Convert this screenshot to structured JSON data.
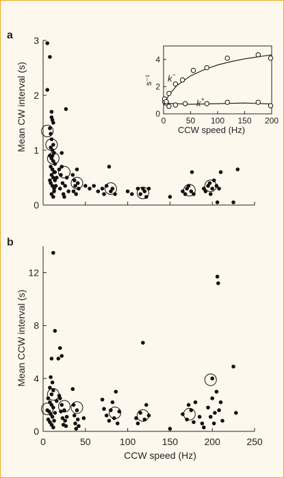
{
  "chart_data": [
    {
      "panel": "a",
      "type": "scatter",
      "xlabel": "",
      "ylabel": "Mean CW interval (s)",
      "xlim": [
        0,
        250
      ],
      "ylim": [
        0,
        3
      ],
      "yticks": [
        "0",
        "1",
        "2",
        "3"
      ],
      "series": [
        {
          "values": [
            [
              5,
              2.95
            ],
            [
              5,
              2.1
            ],
            [
              8,
              2.7
            ],
            [
              10,
              1.6
            ],
            [
              10,
              1.7
            ],
            [
              11,
              1.55
            ],
            [
              12,
              1.5
            ],
            [
              8,
              1.4
            ],
            [
              9,
              1.3
            ],
            [
              10,
              1.2
            ],
            [
              12,
              1.1
            ],
            [
              9,
              1.05
            ],
            [
              11,
              1.0
            ],
            [
              13,
              0.95
            ],
            [
              8,
              0.9
            ],
            [
              10,
              0.85
            ],
            [
              12,
              0.8
            ],
            [
              14,
              0.75
            ],
            [
              9,
              0.7
            ],
            [
              11,
              0.65
            ],
            [
              13,
              0.6
            ],
            [
              10,
              0.55
            ],
            [
              12,
              0.5
            ],
            [
              14,
              0.45
            ],
            [
              9,
              0.4
            ],
            [
              11,
              0.35
            ],
            [
              13,
              0.3
            ],
            [
              10,
              0.2
            ],
            [
              12,
              0.15
            ],
            [
              15,
              0.35
            ],
            [
              8,
              0.45
            ],
            [
              14,
              0.6
            ],
            [
              16,
              0.5
            ],
            [
              13,
              0.25
            ],
            [
              11,
              0.9
            ],
            [
              19,
              0.65
            ],
            [
              20,
              0.3
            ],
            [
              21,
              0.55
            ],
            [
              22,
              0.95
            ],
            [
              22,
              0.7
            ],
            [
              23,
              0.4
            ],
            [
              24,
              0.2
            ],
            [
              25,
              0.15
            ],
            [
              26,
              0.35
            ],
            [
              27,
              1.75
            ],
            [
              28,
              0.5
            ],
            [
              30,
              0.25
            ],
            [
              35,
              0.55
            ],
            [
              36,
              0.25
            ],
            [
              37,
              0.45
            ],
            [
              38,
              0.35
            ],
            [
              39,
              0.2
            ],
            [
              40,
              0.65
            ],
            [
              41,
              0.4
            ],
            [
              42,
              0.3
            ],
            [
              50,
              0.35
            ],
            [
              55,
              0.3
            ],
            [
              60,
              0.35
            ],
            [
              65,
              0.25
            ],
            [
              70,
              0.3
            ],
            [
              72,
              0.2
            ],
            [
              75,
              0.35
            ],
            [
              78,
              0.7
            ],
            [
              80,
              0.25
            ],
            [
              82,
              0.3
            ],
            [
              85,
              0.2
            ],
            [
              100,
              0.25
            ],
            [
              105,
              0.2
            ],
            [
              112,
              0.3
            ],
            [
              115,
              0.2
            ],
            [
              118,
              0.3
            ],
            [
              120,
              0.25
            ],
            [
              122,
              0.15
            ],
            [
              125,
              0.3
            ],
            [
              150,
              0.15
            ],
            [
              165,
              0.25
            ],
            [
              168,
              0.2
            ],
            [
              170,
              0.3
            ],
            [
              172,
              0.35
            ],
            [
              175,
              0.25
            ],
            [
              176,
              0.6
            ],
            [
              178,
              0.2
            ],
            [
              190,
              0.3
            ],
            [
              192,
              0.25
            ],
            [
              195,
              0.35
            ],
            [
              197,
              0.4
            ],
            [
              198,
              0.2
            ],
            [
              200,
              0.3
            ],
            [
              202,
              0.45
            ],
            [
              205,
              0.35
            ],
            [
              206,
              0.05
            ],
            [
              208,
              0.3
            ],
            [
              210,
              0.6
            ],
            [
              225,
              0.05
            ],
            [
              230,
              0.65
            ]
          ]
        },
        {
          "marker": "open-circle-large",
          "values": [
            [
              5,
              1.35
            ],
            [
              10,
              1.1
            ],
            [
              12,
              0.85
            ],
            [
              25,
              0.6
            ],
            [
              40,
              0.4
            ],
            [
              80,
              0.3
            ],
            [
              118,
              0.22
            ],
            [
              173,
              0.27
            ],
            [
              198,
              0.35
            ]
          ]
        }
      ],
      "inset": {
        "type": "line+scatter",
        "xlabel": "CCW speed (Hz)",
        "ylabel": "s⁻¹",
        "xlim": [
          0,
          200
        ],
        "ylim": [
          0,
          5
        ],
        "xticks": [
          "0",
          "50",
          "100",
          "150",
          "200"
        ],
        "yticks": [
          "0",
          "2",
          "4"
        ],
        "annotations": [
          "k",
          "k"
        ],
        "series": [
          {
            "name": "k-",
            "points": [
              [
                2,
                0.9
              ],
              [
                5,
                0.8
              ],
              [
                10,
                1.5
              ],
              [
                22,
                2.2
              ],
              [
                35,
                2.5
              ],
              [
                55,
                3.2
              ],
              [
                80,
                3.4
              ],
              [
                118,
                4.1
              ],
              [
                175,
                4.35
              ],
              [
                198,
                4.1
              ]
            ],
            "fit": [
              [
                0,
                0.6
              ],
              [
                10,
                1.4
              ],
              [
                25,
                2.1
              ],
              [
                50,
                2.8
              ],
              [
                75,
                3.25
              ],
              [
                100,
                3.6
              ],
              [
                125,
                3.85
              ],
              [
                150,
                4.05
              ],
              [
                175,
                4.2
              ],
              [
                200,
                4.35
              ]
            ]
          },
          {
            "name": "k+",
            "points": [
              [
                2,
                1.1
              ],
              [
                5,
                0.9
              ],
              [
                10,
                0.55
              ],
              [
                22,
                0.65
              ],
              [
                40,
                0.75
              ],
              [
                80,
                0.75
              ],
              [
                118,
                0.85
              ],
              [
                175,
                0.85
              ],
              [
                198,
                0.6
              ]
            ],
            "fit": [
              [
                0,
                0.8
              ],
              [
                20,
                0.75
              ],
              [
                50,
                0.7
              ],
              [
                100,
                0.75
              ],
              [
                150,
                0.8
              ],
              [
                200,
                0.72
              ]
            ]
          }
        ]
      }
    },
    {
      "panel": "b",
      "type": "scatter",
      "xlabel": "CCW speed (Hz)",
      "ylabel": "Mean CCW interval (s)",
      "xlim": [
        0,
        250
      ],
      "ylim": [
        0,
        14
      ],
      "xticks": [
        "0",
        "50",
        "100",
        "150",
        "200",
        "250"
      ],
      "yticks": [
        "0",
        "4",
        "8",
        "12"
      ],
      "series": [
        {
          "values": [
            [
              12,
              13.5
            ],
            [
              14,
              7.6
            ],
            [
              20,
              6.3
            ],
            [
              22,
              5.7
            ],
            [
              18,
              5.5
            ],
            [
              10,
              5.5
            ],
            [
              9,
              4.1
            ],
            [
              11,
              3.7
            ],
            [
              8,
              3.3
            ],
            [
              12,
              3.1
            ],
            [
              10,
              2.8
            ],
            [
              6,
              2.5
            ],
            [
              8,
              2.2
            ],
            [
              10,
              2.0
            ],
            [
              12,
              1.8
            ],
            [
              5,
              1.6
            ],
            [
              7,
              1.5
            ],
            [
              9,
              1.3
            ],
            [
              11,
              1.1
            ],
            [
              6,
              0.9
            ],
            [
              8,
              0.7
            ],
            [
              10,
              0.5
            ],
            [
              12,
              0.3
            ],
            [
              14,
              1.4
            ],
            [
              16,
              2.3
            ],
            [
              13,
              0.8
            ],
            [
              19,
              2.7
            ],
            [
              20,
              2.5
            ],
            [
              21,
              1.5
            ],
            [
              22,
              2.0
            ],
            [
              23,
              1.0
            ],
            [
              24,
              0.5
            ],
            [
              25,
              1.6
            ],
            [
              26,
              0.8
            ],
            [
              27,
              0.4
            ],
            [
              28,
              1.1
            ],
            [
              35,
              3.2
            ],
            [
              36,
              2.0
            ],
            [
              37,
              1.2
            ],
            [
              38,
              0.6
            ],
            [
              39,
              0.2
            ],
            [
              40,
              1.6
            ],
            [
              41,
              0.9
            ],
            [
              42,
              0.4
            ],
            [
              48,
              1.0
            ],
            [
              70,
              2.4
            ],
            [
              72,
              1.7
            ],
            [
              75,
              1.2
            ],
            [
              78,
              0.8
            ],
            [
              80,
              1.6
            ],
            [
              82,
              2.2
            ],
            [
              84,
              1.0
            ],
            [
              86,
              3.0
            ],
            [
              88,
              0.6
            ],
            [
              90,
              1.5
            ],
            [
              110,
              1.0
            ],
            [
              112,
              0.6
            ],
            [
              115,
              1.4
            ],
            [
              118,
              6.7
            ],
            [
              120,
              0.9
            ],
            [
              122,
              2.0
            ],
            [
              125,
              1.2
            ],
            [
              150,
              0.2
            ],
            [
              165,
              1.3
            ],
            [
              170,
              0.9
            ],
            [
              172,
              2.0
            ],
            [
              175,
              1.6
            ],
            [
              178,
              0.7
            ],
            [
              180,
              2.2
            ],
            [
              185,
              1.1
            ],
            [
              188,
              0.6
            ],
            [
              190,
              0.3
            ],
            [
              195,
              1.8
            ],
            [
              198,
              1.1
            ],
            [
              200,
              2.5
            ],
            [
              202,
              0.6
            ],
            [
              203,
              1.4
            ],
            [
              205,
              3.0
            ],
            [
              206,
              11.7
            ],
            [
              207,
              11.2
            ],
            [
              208,
              1.6
            ],
            [
              210,
              2.2
            ],
            [
              212,
              0.8
            ],
            [
              225,
              4.9
            ],
            [
              228,
              1.4
            ],
            [
              200,
              4.0
            ]
          ]
        },
        {
          "marker": "open-circle-large",
          "values": [
            [
              5,
              1.7
            ],
            [
              12,
              2.8
            ],
            [
              25,
              1.9
            ],
            [
              40,
              1.8
            ],
            [
              85,
              1.4
            ],
            [
              118,
              1.2
            ],
            [
              173,
              1.3
            ],
            [
              198,
              3.9
            ]
          ]
        }
      ]
    }
  ],
  "labels": {
    "panel_a": "a",
    "panel_b": "b",
    "k_minus_sup": "−",
    "k_plus_sup": "+"
  }
}
